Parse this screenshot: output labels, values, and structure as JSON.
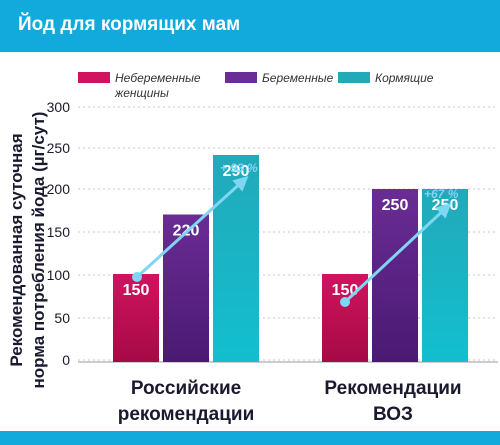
{
  "header": {
    "title": "Йод для кормящих мам"
  },
  "colors": {
    "header_bg": "#12a9dd",
    "arrow": "#7fd6f2",
    "axis_text": "#1a1a2e",
    "grid": "#c8c8c8"
  },
  "chart_data": {
    "type": "bar",
    "title": "",
    "xlabel": "",
    "ylabel": "Рекомендованная суточная норма потребления йода (µг/сут)",
    "ylim": [
      50,
      300
    ],
    "yticks": [
      300,
      250,
      200,
      150,
      100,
      50,
      0
    ],
    "grid": true,
    "legend_position": "top",
    "categories": [
      "Российские рекомендации",
      "Рекомендации ВОЗ"
    ],
    "category_lines": [
      [
        "Российские",
        "рекомендации"
      ],
      [
        "Рекомендации",
        "ВОЗ"
      ]
    ],
    "series": [
      {
        "name": "Небеременные женщины",
        "legend_lines": [
          "Небеременные",
          "женщины"
        ],
        "values": [
          150,
          150
        ],
        "labels": [
          "150",
          "150"
        ],
        "color": "#d1135f",
        "color_bottom": "#a60a45"
      },
      {
        "name": "Беременные",
        "legend_lines": [
          "Беременные"
        ],
        "values": [
          220,
          250
        ],
        "labels": [
          "220",
          "250"
        ],
        "color": "#6a2c95",
        "color_bottom": "#4a1a72"
      },
      {
        "name": "Кормящие",
        "legend_lines": [
          "Кормящие"
        ],
        "values": [
          290,
          250
        ],
        "labels": [
          "290",
          "250"
        ],
        "color": "#22a9ba",
        "color_bottom": "#12bfcf"
      }
    ],
    "annotations": [
      {
        "text": "+ 93 %",
        "group": 0
      },
      {
        "text": "+67 %",
        "group": 1
      }
    ]
  }
}
